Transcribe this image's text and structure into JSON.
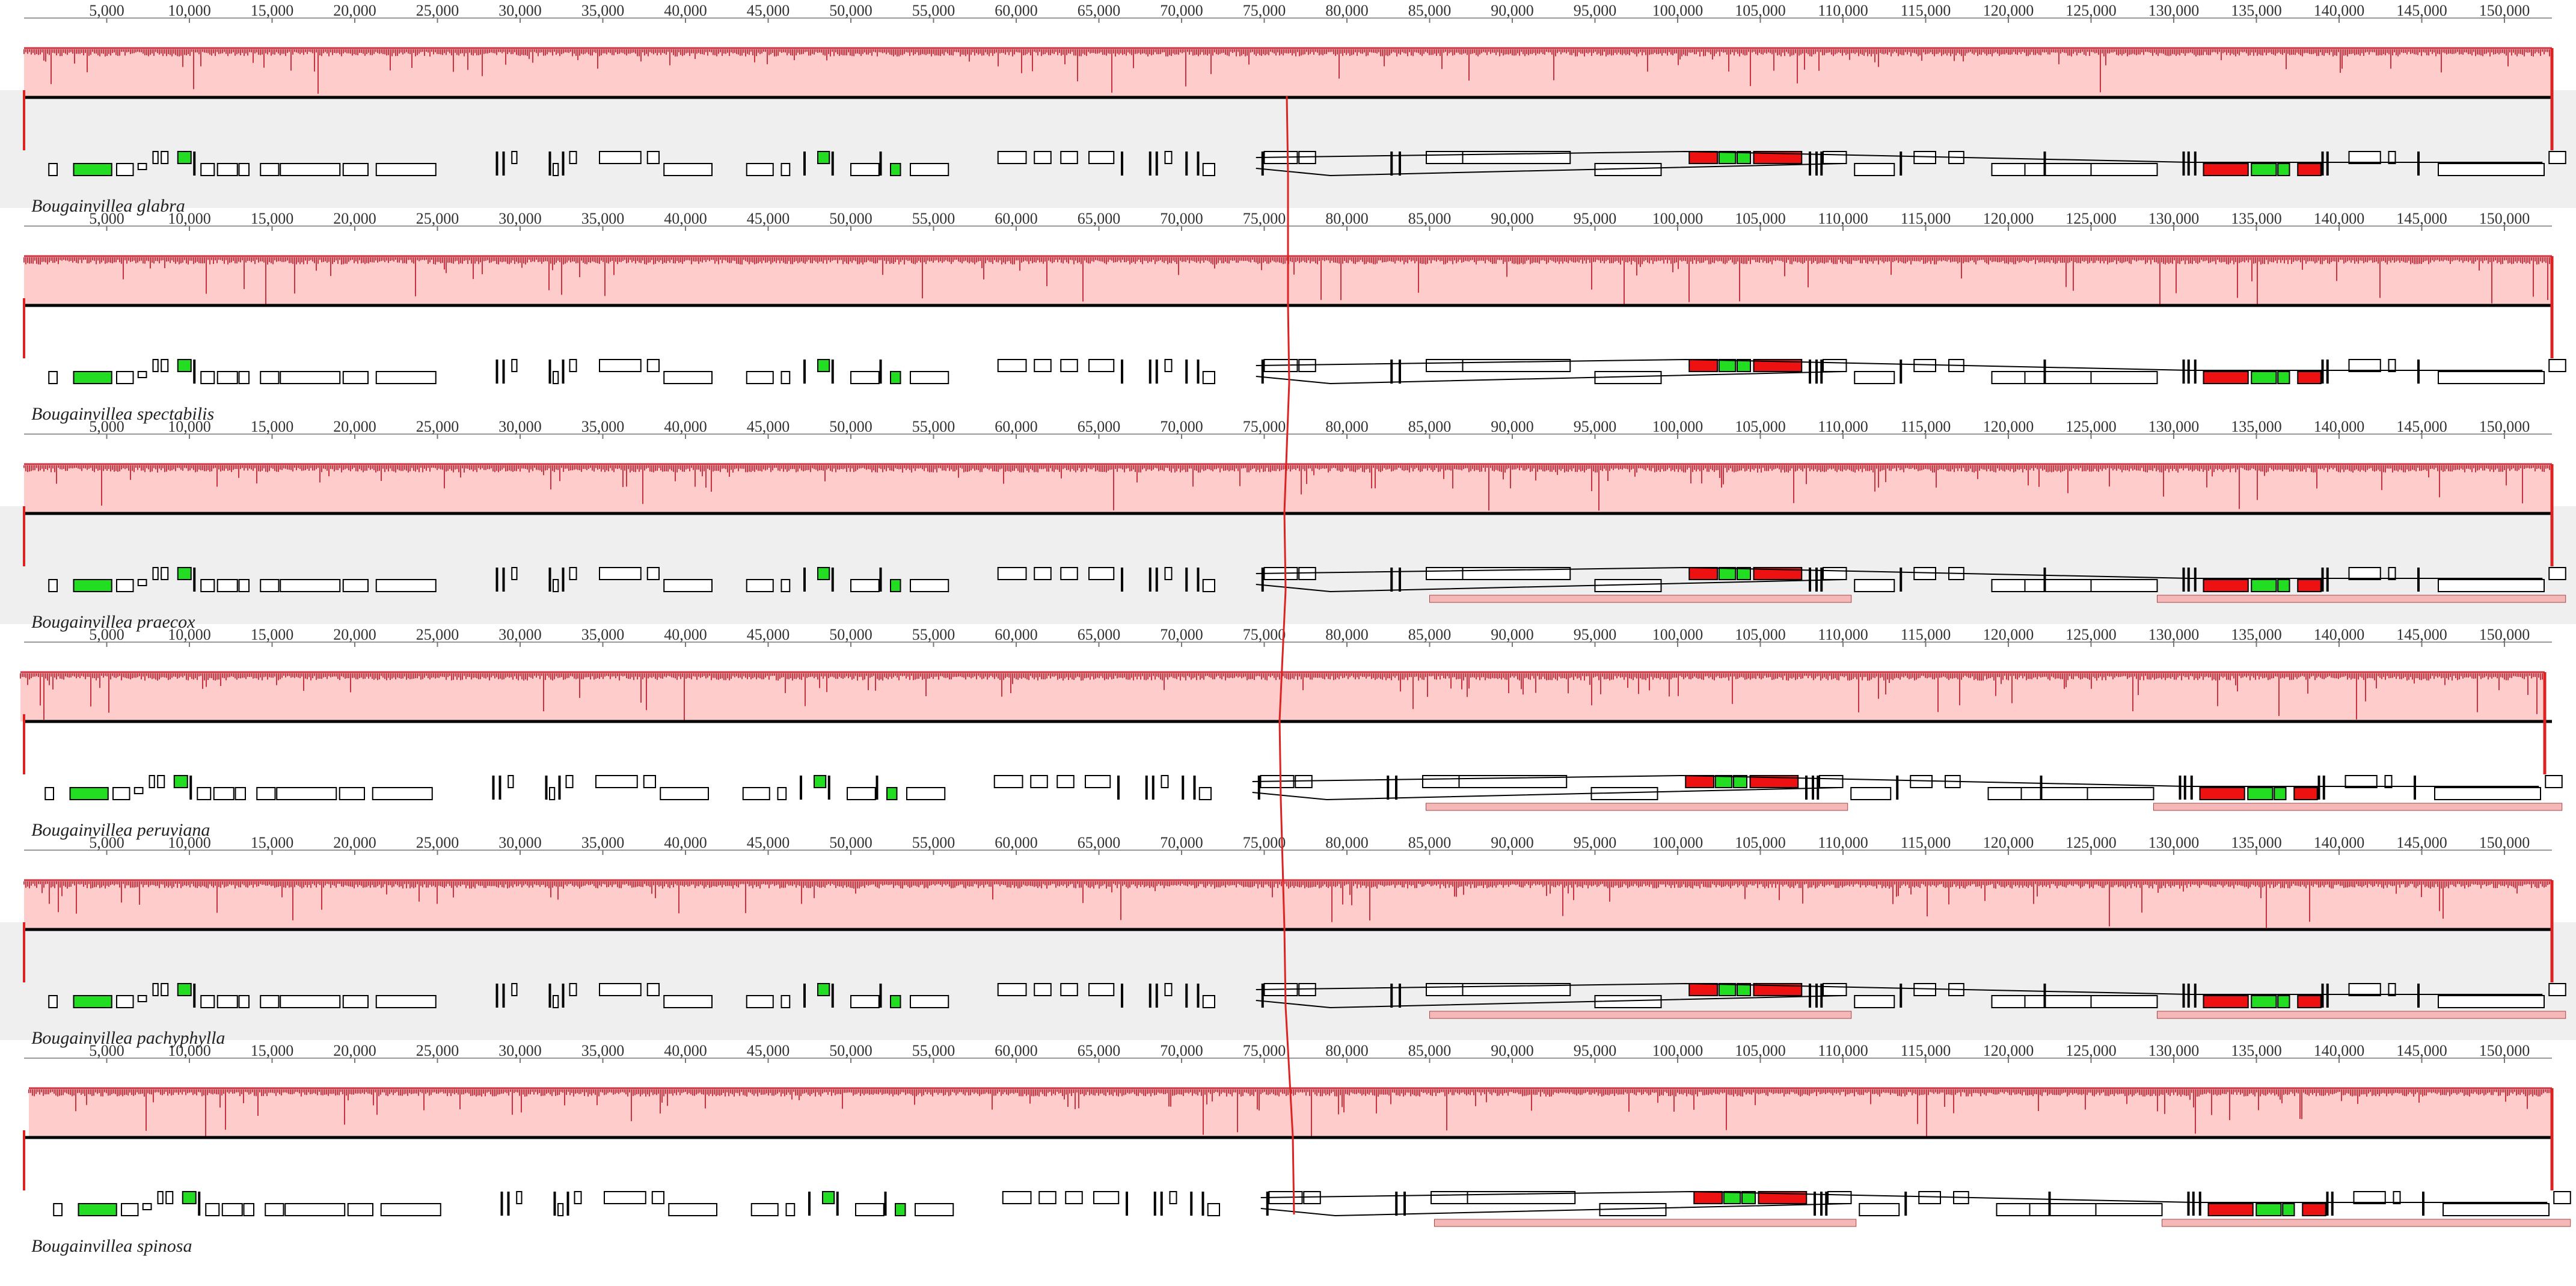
{
  "axis": {
    "tick_labels": [
      "5,000",
      "10,000",
      "15,000",
      "20,000",
      "25,000",
      "30,000",
      "35,000",
      "40,000",
      "45,000",
      "50,000",
      "55,000",
      "60,000",
      "65,000",
      "70,000",
      "75,000",
      "80,000",
      "85,000",
      "90,000",
      "95,000",
      "100,000",
      "105,000",
      "110,000",
      "115,000",
      "120,000",
      "125,000",
      "130,000",
      "135,000",
      "140,000",
      "145,000",
      "150,000"
    ]
  },
  "colors": {
    "similarity_fill": "#ffcccc",
    "similarity_line": "#cc3340",
    "lcb_connector": "#dd2222",
    "gene_plain": "#ffffff",
    "gene_green": "#22dd22",
    "gene_red": "#ee1111",
    "highlight_bar": "#f4b8b8",
    "panel_shaded": "#efefef"
  },
  "genomes": [
    {
      "name": "Bougainvillea glabra",
      "shaded": true,
      "highlight": false
    },
    {
      "name": "Bougainvillea spectabilis",
      "shaded": false,
      "highlight": false
    },
    {
      "name": "Bougainvillea praecox",
      "shaded": true,
      "highlight": true
    },
    {
      "name": "Bougainvillea peruviana",
      "shaded": false,
      "highlight": true
    },
    {
      "name": "Bougainvillea pachyphylla",
      "shaded": true,
      "highlight": true
    },
    {
      "name": "Bougainvillea spinosa",
      "shaded": false,
      "highlight": true
    }
  ]
}
